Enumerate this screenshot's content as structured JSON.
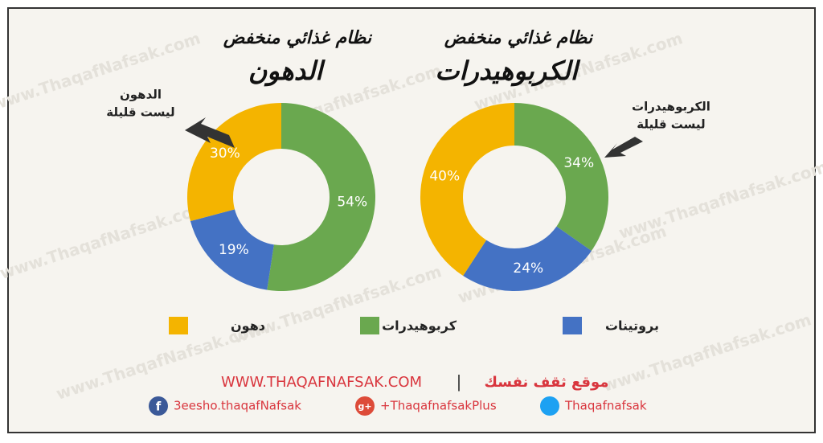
{
  "chart_data": [
    {
      "type": "donut",
      "title": "نظام غذائي منخفض",
      "subtitle": "الدهون",
      "annotation": [
        "الدهون",
        "ليست قليلة"
      ],
      "values": [
        54,
        19,
        30
      ],
      "value_labels": [
        "54%",
        "19%",
        "30%"
      ]
    },
    {
      "type": "donut",
      "title": "نظام غذائي منخفض",
      "subtitle": "الكربوهيدرات",
      "annotation": [
        "الكربوهيدرات",
        "ليست قليلة"
      ],
      "values": [
        34,
        24,
        40
      ],
      "value_labels": [
        "34%",
        "24%",
        "40%"
      ]
    }
  ],
  "legend": {
    "names": [
      "كربوهيدرات",
      "بروتينات",
      "دهون"
    ],
    "colors": [
      "#6aa84f",
      "#4472c4",
      "#f4b400"
    ]
  },
  "watermark": "www.ThaqafNafsak.com",
  "footer": {
    "site": "WWW.THAQAFNAFSAK.COM",
    "separator": "|",
    "site_name": "موقع ثقف نفسك",
    "facebook": "3eesho.thaqafNafsak",
    "google": "+ThaqafnafsakPlus",
    "twitter": "Thaqafnafsak"
  }
}
